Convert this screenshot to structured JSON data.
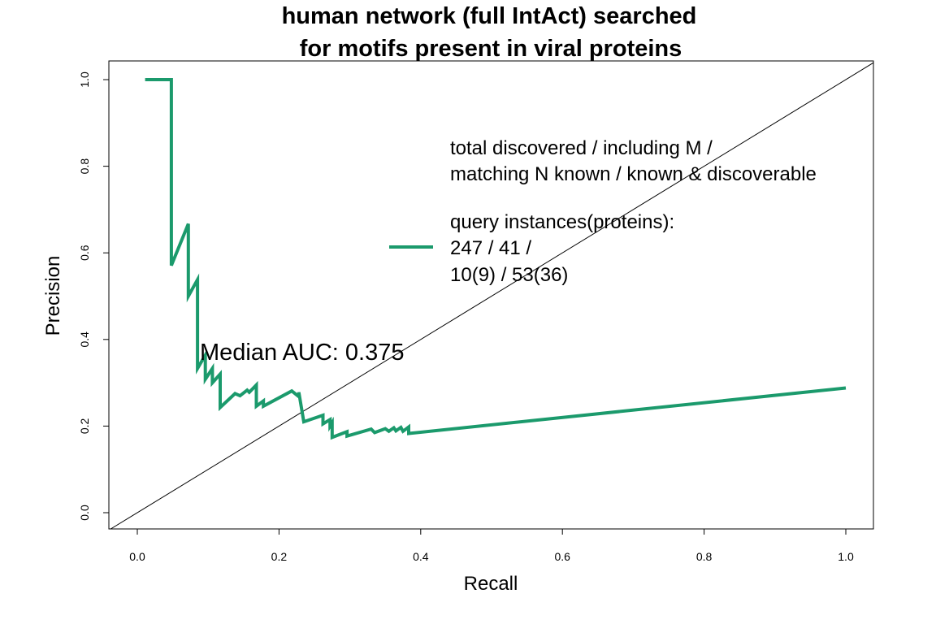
{
  "chart_data": {
    "type": "line",
    "title_lines": [
      "human network (full IntAct) searched",
      "for motifs present in viral proteins"
    ],
    "xlabel": "Recall",
    "ylabel": "Precision",
    "xlim": [
      0.0,
      1.0
    ],
    "ylim": [
      0.0,
      1.0
    ],
    "x_ticks": [
      0.0,
      0.2,
      0.4,
      0.6,
      0.8,
      1.0
    ],
    "y_ticks": [
      0.0,
      0.2,
      0.4,
      0.6,
      0.8,
      1.0
    ],
    "x_tick_labels": [
      "0.0",
      "0.2",
      "0.4",
      "0.6",
      "0.8",
      "1.0"
    ],
    "y_tick_labels": [
      "0.0",
      "0.2",
      "0.4",
      "0.6",
      "0.8",
      "1.0"
    ],
    "grid": false,
    "legend_position": "right",
    "legend": {
      "header_lines": [
        "total discovered / including M /",
        "matching N known / known & discoverable"
      ],
      "entry_lines": [
        "query instances(proteins):",
        "247 / 41 /",
        "10(9) / 53(36)"
      ]
    },
    "annotation": "Median AUC: 0.375",
    "reference_line": {
      "from": [
        0,
        0
      ],
      "to": [
        1,
        1
      ],
      "color": "#000000"
    },
    "series": [
      {
        "color": "#1b9a6c",
        "x": [
          0.011,
          0.048,
          0.048,
          0.072,
          0.072,
          0.085,
          0.085,
          0.096,
          0.096,
          0.106,
          0.106,
          0.117,
          0.117,
          0.138,
          0.145,
          0.155,
          0.158,
          0.168,
          0.168,
          0.178,
          0.178,
          0.218,
          0.228,
          0.228,
          0.235,
          0.262,
          0.262,
          0.272,
          0.272,
          0.275,
          0.275,
          0.296,
          0.296,
          0.33,
          0.335,
          0.35,
          0.355,
          0.362,
          0.365,
          0.372,
          0.375,
          0.383,
          0.383,
          1.0
        ],
        "y": [
          1.0,
          1.0,
          0.571,
          0.667,
          0.5,
          0.538,
          0.333,
          0.364,
          0.308,
          0.333,
          0.3,
          0.32,
          0.243,
          0.275,
          0.27,
          0.283,
          0.278,
          0.295,
          0.246,
          0.258,
          0.246,
          0.281,
          0.268,
          0.278,
          0.21,
          0.225,
          0.205,
          0.215,
          0.2,
          0.208,
          0.174,
          0.187,
          0.177,
          0.193,
          0.185,
          0.194,
          0.188,
          0.196,
          0.189,
          0.197,
          0.188,
          0.198,
          0.183,
          0.288
        ]
      }
    ]
  }
}
